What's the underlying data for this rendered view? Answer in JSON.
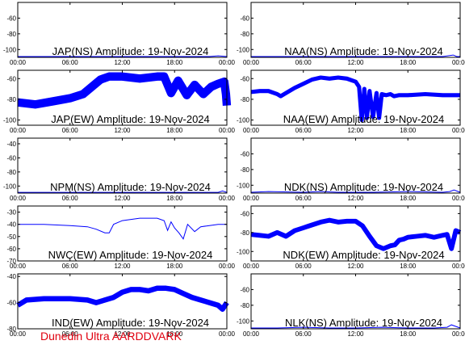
{
  "credit": "Dunedin Ultra AARDDVARK",
  "colors": {
    "trace": "#0000ff",
    "axis": "#000000",
    "credit": "#e0000f"
  },
  "chart_data": [
    {
      "type": "line",
      "title": "JAP(NS) Amplitude: 19-Nov-2024",
      "x_ticks": [
        "00:00",
        "06:00",
        "12:00",
        "18:00",
        "00:00"
      ],
      "y_ticks": [
        "-60",
        "-80",
        "-100"
      ],
      "ylim": [
        -110,
        -40
      ],
      "band": 0,
      "series": [
        {
          "x": [
            0,
            1,
            5,
            10,
            14,
            18,
            22,
            23,
            24
          ],
          "y": [
            -109,
            -109,
            -109,
            -109,
            -109,
            -109,
            -109,
            -108,
            -109
          ]
        }
      ]
    },
    {
      "type": "line",
      "title": "NAA(NS) Amplitude: 19-Nov-2024",
      "x_ticks": [
        "00:00",
        "06:00",
        "12:00",
        "18:00",
        "00:00"
      ],
      "y_ticks": [
        "-60",
        "-80",
        "-100"
      ],
      "ylim": [
        -110,
        -40
      ],
      "band": 0,
      "series": [
        {
          "x": [
            0,
            5,
            10,
            14,
            18,
            22,
            23.2,
            23.6,
            24
          ],
          "y": [
            -109,
            -109,
            -109,
            -109,
            -109,
            -109,
            -107,
            -109,
            -109
          ]
        }
      ]
    },
    {
      "type": "line",
      "title": "JAP(EW) Amplitude: 19-Nov-2024",
      "x_ticks": [
        "00:00",
        "06:00",
        "12:00",
        "18:00",
        "00:00"
      ],
      "y_ticks": [
        "-60",
        "-80",
        "-100"
      ],
      "ylim": [
        -105,
        -52
      ],
      "band": 8,
      "series": [
        {
          "x": [
            0,
            2,
            4,
            6,
            7.5,
            8.5,
            9.5,
            10.5,
            12,
            14,
            16,
            16.8,
            17.6,
            18.4,
            19.4,
            20.3,
            21.3,
            22.2,
            23,
            23.7,
            23.9,
            24
          ],
          "y": [
            -83,
            -85,
            -82,
            -79,
            -75,
            -68,
            -61,
            -58,
            -58,
            -60,
            -58,
            -58,
            -74,
            -62,
            -76,
            -66,
            -75,
            -68,
            -65,
            -63,
            -75,
            -86
          ]
        }
      ]
    },
    {
      "type": "line",
      "title": "NAA(EW) Amplitude: 19-Nov-2024",
      "x_ticks": [
        "00:00",
        "06:00",
        "12:00",
        "18:00",
        "00:00"
      ],
      "y_ticks": [
        "-60",
        "-80",
        "-100"
      ],
      "ylim": [
        -105,
        -52
      ],
      "band": 4,
      "series": [
        {
          "x": [
            0,
            1,
            2,
            3,
            3.4,
            4,
            5,
            6,
            7,
            8,
            9,
            10,
            11,
            12,
            12.4,
            12.7,
            13,
            13.3,
            13.6,
            14,
            14.4,
            14.7,
            15,
            15.5,
            16,
            16.4,
            17,
            18,
            20,
            22,
            24
          ],
          "y": [
            -73,
            -72,
            -72,
            -75,
            -77,
            -74,
            -69,
            -65,
            -61,
            -59,
            -60,
            -59,
            -60,
            -63,
            -68,
            -100,
            -70,
            -98,
            -72,
            -97,
            -74,
            -98,
            -75,
            -76,
            -75,
            -77,
            -76,
            -76,
            -75,
            -76,
            -76
          ]
        }
      ]
    },
    {
      "type": "line",
      "title": "NPM(NS) Amplitude: 19-Nov-2024",
      "x_ticks": [
        "00:00",
        "06:00",
        "12:00",
        "18:00",
        "00:00"
      ],
      "y_ticks": [
        "-40",
        "-60",
        "-80",
        "-100"
      ],
      "ylim": [
        -110,
        -32
      ],
      "band": 0,
      "series": [
        {
          "x": [
            0,
            4,
            8,
            12,
            16,
            20,
            23,
            23.5,
            24
          ],
          "y": [
            -109,
            -109,
            -109,
            -109,
            -109,
            -109,
            -109,
            -107,
            -109
          ]
        }
      ]
    },
    {
      "type": "line",
      "title": "NDK(NS) Amplitude: 19-Nov-2024",
      "x_ticks": [
        "00:00",
        "06:00",
        "12:00",
        "18:00",
        "00:00"
      ],
      "y_ticks": [
        "-60",
        "-80",
        "-100"
      ],
      "ylim": [
        -110,
        -40
      ],
      "band": 0,
      "series": [
        {
          "x": [
            0,
            2,
            6,
            8,
            10,
            14,
            18,
            22,
            22.8,
            23.3,
            24
          ],
          "y": [
            -109,
            -108,
            -109,
            -108,
            -109,
            -109,
            -108,
            -109,
            -108,
            -106,
            -109
          ]
        }
      ]
    },
    {
      "type": "line",
      "title": "NWC(EW) Amplitude: 19-Nov-2024",
      "x_ticks": [
        "00:00",
        "06:00",
        "12:00",
        "18:00",
        "00:00"
      ],
      "y_ticks": [
        "-30",
        "-40",
        "-50",
        "-60",
        "-70"
      ],
      "ylim": [
        -70,
        -25
      ],
      "band": 0,
      "series": [
        {
          "x": [
            0,
            3,
            6,
            8,
            9,
            10,
            10.5,
            11,
            12,
            14,
            16,
            16.8,
            17.2,
            17.6,
            18,
            18.5,
            19,
            19.5,
            20.3,
            21,
            22,
            23,
            24
          ],
          "y": [
            -40,
            -40,
            -41,
            -42,
            -44,
            -47,
            -47,
            -40,
            -37,
            -35,
            -35,
            -37,
            -45,
            -38,
            -43,
            -47,
            -52,
            -40,
            -46,
            -42,
            -41,
            -40,
            -40
          ]
        }
      ]
    },
    {
      "type": "line",
      "title": "NDK(EW) Amplitude: 19-Nov-2024",
      "x_ticks": [
        "00:00",
        "06:00",
        "12:00",
        "18:00",
        "00:00"
      ],
      "y_ticks": [
        "-60",
        "-80",
        "-100"
      ],
      "ylim": [
        -110,
        -52
      ],
      "band": 5,
      "series": [
        {
          "x": [
            0,
            1,
            2,
            3,
            4,
            5,
            6,
            7,
            8,
            9,
            10,
            11,
            12,
            12.8,
            13.6,
            14.4,
            15.2,
            16,
            16.5,
            17,
            17.5,
            18,
            19,
            20,
            21,
            22,
            22.5,
            23,
            23.5,
            24
          ],
          "y": [
            -82,
            -83,
            -84,
            -80,
            -84,
            -78,
            -75,
            -72,
            -69,
            -67,
            -69,
            -68,
            -68,
            -73,
            -84,
            -94,
            -97,
            -94,
            -93,
            -88,
            -87,
            -85,
            -84,
            -83,
            -85,
            -83,
            -82,
            -97,
            -78,
            -80
          ]
        }
      ]
    },
    {
      "type": "line",
      "title": "IND(EW) Amplitude: 19-Nov-2024",
      "x_ticks": [
        "00:00",
        "06:00",
        "12:00",
        "18:00",
        "00:00"
      ],
      "y_ticks": [
        "-40",
        "-60",
        "-80"
      ],
      "ylim": [
        -80,
        -38
      ],
      "band": 4,
      "series": [
        {
          "x": [
            0,
            1,
            3,
            6,
            8,
            9,
            10,
            11,
            12,
            13,
            14,
            15,
            16,
            17,
            18,
            19,
            20,
            21,
            22,
            23,
            23.5,
            24
          ],
          "y": [
            -62,
            -58,
            -57,
            -57,
            -58,
            -60,
            -58,
            -56,
            -52,
            -50,
            -50,
            -51,
            -49,
            -49,
            -50,
            -53,
            -56,
            -58,
            -60,
            -62,
            -65,
            -60
          ]
        }
      ]
    },
    {
      "type": "line",
      "title": "NLK(NS) Amplitude: 19-Nov-2024",
      "x_ticks": [
        "00:00",
        "06:00",
        "12:00",
        "18:00",
        "00:00"
      ],
      "y_ticks": [
        "-60",
        "-80",
        "-100"
      ],
      "ylim": [
        -110,
        -40
      ],
      "band": 0,
      "series": [
        {
          "x": [
            0,
            3,
            6,
            9,
            12,
            15,
            18,
            21,
            22.5,
            23,
            24
          ],
          "y": [
            -109,
            -109,
            -108,
            -109,
            -109,
            -108,
            -109,
            -109,
            -108,
            -105,
            -109
          ]
        }
      ]
    }
  ]
}
